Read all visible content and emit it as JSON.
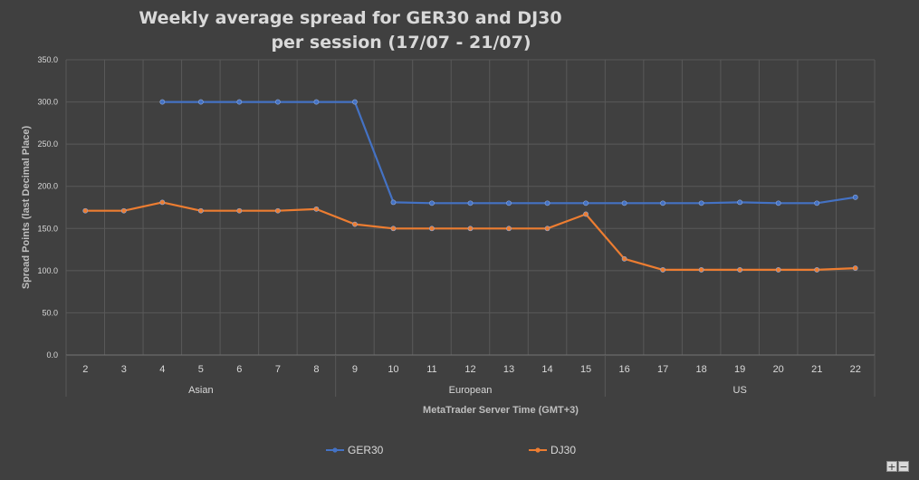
{
  "chart_data": {
    "type": "line",
    "title_lines": [
      "Weekly average spread for GER30 and DJ30",
      "per session (17/07 - 21/07)"
    ],
    "xlabel": "MetaTrader Server Time (GMT+3)",
    "ylabel": "Spread Points  (last Decimal Place)",
    "categories": [
      "2",
      "3",
      "4",
      "5",
      "6",
      "7",
      "8",
      "9",
      "10",
      "11",
      "12",
      "13",
      "14",
      "15",
      "16",
      "17",
      "18",
      "19",
      "20",
      "21",
      "22"
    ],
    "sessions": [
      {
        "label": "Asian",
        "from": "2",
        "to": "8"
      },
      {
        "label": "European",
        "from": "9",
        "to": "15"
      },
      {
        "label": "US",
        "from": "16",
        "to": "22"
      }
    ],
    "ylim": [
      0,
      350
    ],
    "ytick_step": 50,
    "yticks": [
      "0.0",
      "50.0",
      "100.0",
      "150.0",
      "200.0",
      "250.0",
      "300.0",
      "350.0"
    ],
    "grid": true,
    "legend_position": "bottom",
    "series": [
      {
        "name": "GER30",
        "color": "#4472c4",
        "values": [
          null,
          null,
          300,
          300,
          300,
          300,
          300,
          300,
          181,
          180,
          180,
          180,
          180,
          180,
          180,
          180,
          180,
          181,
          180,
          180,
          187
        ]
      },
      {
        "name": "DJ30",
        "color": "#ed7d31",
        "values": [
          171,
          171,
          181,
          171,
          171,
          171,
          173,
          155,
          150,
          150,
          150,
          150,
          150,
          167,
          114,
          101,
          101,
          101,
          101,
          101,
          103
        ]
      }
    ]
  },
  "controls": {
    "zoom_in_label": "+",
    "zoom_out_label": "−"
  }
}
